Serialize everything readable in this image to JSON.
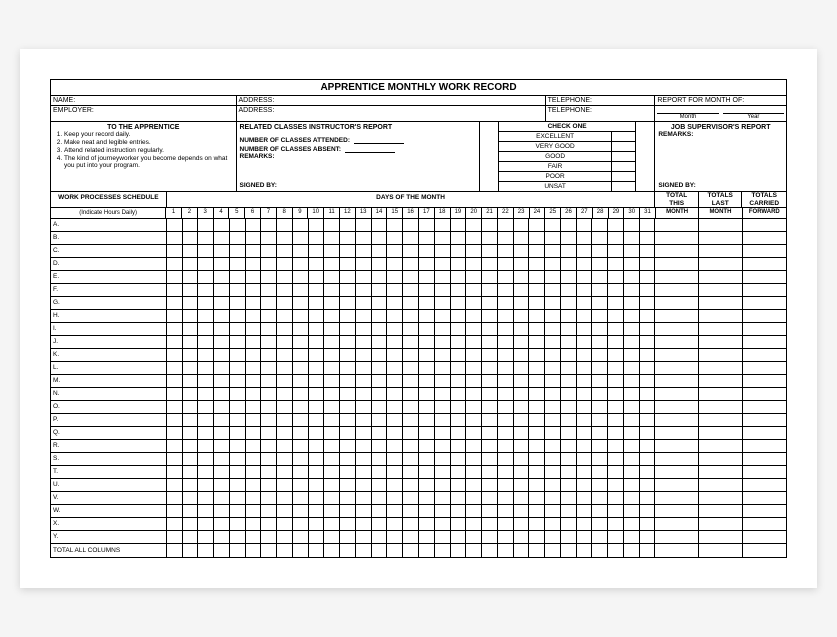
{
  "title": "APPRENTICE MONTHLY WORK RECORD",
  "header": {
    "name": "NAME:",
    "address1": "ADDRESS:",
    "telephone1": "TELEPHONE:",
    "report_for": "REPORT FOR MONTH OF:",
    "employer": "EMPLOYER:",
    "address2": "ADDRESS:",
    "telephone2": "TELEPHONE:",
    "month": "Month",
    "year": "Year"
  },
  "apprentice": {
    "title": "TO THE APPRENTICE",
    "items": [
      "Keep your record daily.",
      "Make neat and legible entries.",
      "Attend related instruction regularly.",
      "The kind of journeyworker you become depends on what you put into your program."
    ]
  },
  "instructor": {
    "title": "RELATED CLASSES INSTRUCTOR'S REPORT",
    "attended": "NUMBER OF CLASSES ATTENDED:",
    "absent": "NUMBER OF CLASSES ABSENT:",
    "remarks": "REMARKS:",
    "signed": "SIGNED BY:"
  },
  "check": {
    "title": "CHECK ONE",
    "ratings": [
      "EXCELLENT",
      "VERY GOOD",
      "GOOD",
      "FAIR",
      "POOR",
      "UNSAT"
    ]
  },
  "supervisor": {
    "title": "JOB SUPERVISOR'S REPORT",
    "remarks": "REMARKS:",
    "signed": "SIGNED BY:"
  },
  "schedule": {
    "title": "WORK PROCESSES SCHEDULE",
    "days_title": "DAYS OF THE MONTH",
    "sub_proc": "(Indicate Hours Daily)",
    "totals": {
      "this1": "TOTAL",
      "this2": "THIS",
      "last1": "TOTALS",
      "last2": "LAST",
      "fwd1": "TOTALS",
      "fwd2": "CARRIED",
      "sub_this": "MONTH",
      "sub_last": "MONTH",
      "sub_fwd": "FORWARD"
    },
    "days": [
      "1",
      "2",
      "3",
      "4",
      "5",
      "6",
      "7",
      "8",
      "9",
      "10",
      "11",
      "12",
      "13",
      "14",
      "15",
      "16",
      "17",
      "18",
      "19",
      "20",
      "21",
      "22",
      "23",
      "24",
      "25",
      "26",
      "27",
      "28",
      "29",
      "30",
      "31"
    ],
    "rows": [
      "A.",
      "B.",
      "C.",
      "D.",
      "E.",
      "F.",
      "G.",
      "H.",
      "I.",
      "J.",
      "K.",
      "L.",
      "M.",
      "N.",
      "O.",
      "P.",
      "Q.",
      "R.",
      "S.",
      "T.",
      "U.",
      "V.",
      "W.",
      "X.",
      "Y.",
      "TOTAL ALL COLUMNS"
    ]
  },
  "colors": {
    "border": "#000000",
    "bg": "#ffffff"
  }
}
